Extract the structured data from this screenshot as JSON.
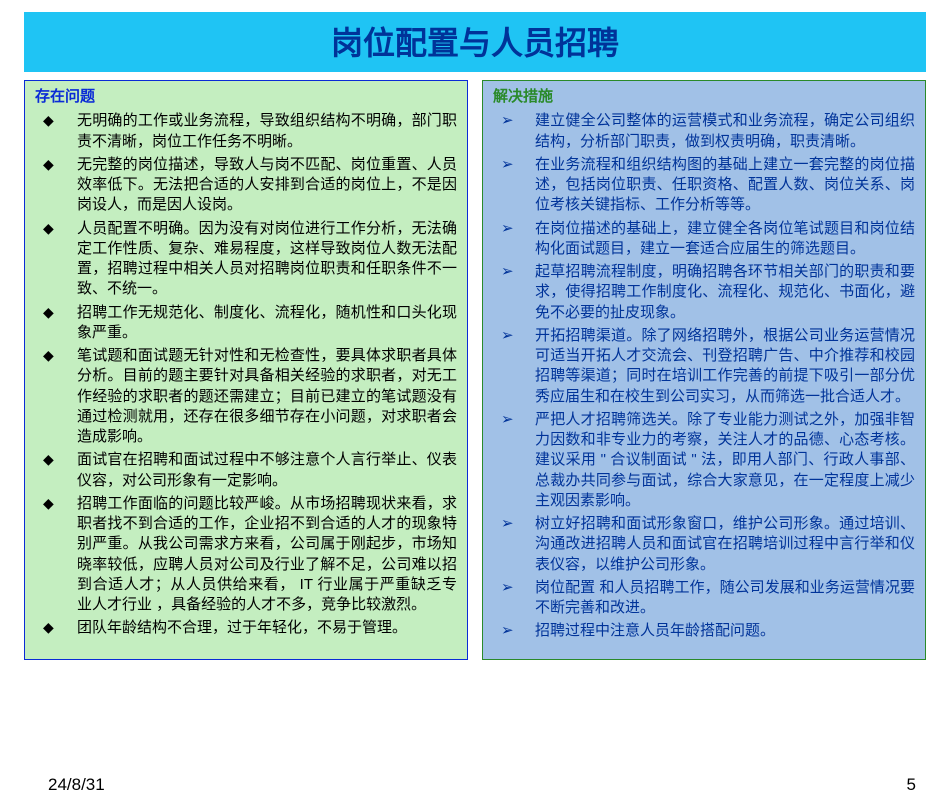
{
  "slide": {
    "title": "岗位配置与人员招聘",
    "title_bg": "#1fc4f4",
    "title_color": "#003399",
    "title_fontsize": 32,
    "body_fontsize": 15,
    "body_lineheight": 1.35,
    "left": {
      "heading": "存在问题",
      "heading_color": "#0a2bd6",
      "bg": "#c4eec0",
      "border": "#0a2bd6",
      "text_color": "#000000",
      "bullet_color": "#000000",
      "items": [
        "无明确的工作或业务流程，导致组织结构不明确，部门职责不清晰，岗位工作任务不明晰。",
        "无完整的岗位描述，导致人与岗不匹配、岗位重置、人员效率低下。无法把合适的人安排到合适的岗位上，不是因岗设人，而是因人设岗。",
        "人员配置不明确。因为没有对岗位进行工作分析，无法确定工作性质、复杂、难易程度，这样导致岗位人数无法配置，招聘过程中相关人员对招聘岗位职责和任职条件不一致、不统一。",
        "招聘工作无规范化、制度化、流程化，随机性和口头化现象严重。",
        "笔试题和面试题无针对性和无检查性，要具体求职者具体分析。目前的题主要针对具备相关经验的求职者，对无工作经验的求职者的题还需建立；目前已建立的笔试题没有通过检测就用，还存在很多细节存在小问题，对求职者会造成影响。",
        "面试官在招聘和面试过程中不够注意个人言行举止、仪表仪容，对公司形象有一定影响。",
        "招聘工作面临的问题比较严峻。从市场招聘现状来看，求职者找不到合适的工作，企业招不到合适的人才的现象特别严重。从我公司需求方来看，公司属于刚起步，市场知晓率较低，应聘人员对公司及行业了解不足，公司难以招到合适人才；从人员供给来看， IT 行业属于严重缺乏专业人才行业 ，具备经验的人才不多，竞争比较激烈。",
        "团队年龄结构不合理，过于年轻化，不易于管理。"
      ]
    },
    "right": {
      "heading": "解决措施",
      "heading_color": "#2a8a2a",
      "bg": "#a1c1e7",
      "border": "#2a8a2a",
      "text_color": "#003399",
      "bullet_color": "#003399",
      "items": [
        "建立健全公司整体的运营模式和业务流程，确定公司组织结构，分析部门职责，做到权责明确，职责清晰。",
        "在业务流程和组织结构图的基础上建立一套完整的岗位描述，包括岗位职责、任职资格、配置人数、岗位关系、岗位考核关键指标、工作分析等等。",
        "在岗位描述的基础上，建立健全各岗位笔试题目和岗位结构化面试题目，建立一套适合应届生的筛选题目。",
        "起草招聘流程制度，明确招聘各环节相关部门的职责和要求，使得招聘工作制度化、流程化、规范化、书面化，避免不必要的扯皮现象。",
        "开拓招聘渠道。除了网络招聘外，根据公司业务运营情况可适当开拓人才交流会、刊登招聘广告、中介推荐和校园招聘等渠道；同时在培训工作完善的前提下吸引一部分优秀应届生和在校生到公司实习，从而筛选一批合适人才。",
        "严把人才招聘筛选关。除了专业能力测试之外，加强非智力因数和非专业力的考察，关注人才的品德、心态考核。建议采用 \" 合议制面试 \" 法，即用人部门、行政人事部、总裁办共同参与面试，综合大家意见，在一定程度上减少主观因素影响。",
        "树立好招聘和面试形象窗口，维护公司形象。通过培训、沟通改进招聘人员和面试官在招聘培训过程中言行举和仪表仪容，以维护公司形象。",
        "岗位配置 和人员招聘工作，随公司发展和业务运营情况要不断完善和改进。",
        "招聘过程中注意人员年龄搭配问题。"
      ]
    },
    "footer": {
      "date": "24/8/31",
      "page": "5"
    }
  }
}
